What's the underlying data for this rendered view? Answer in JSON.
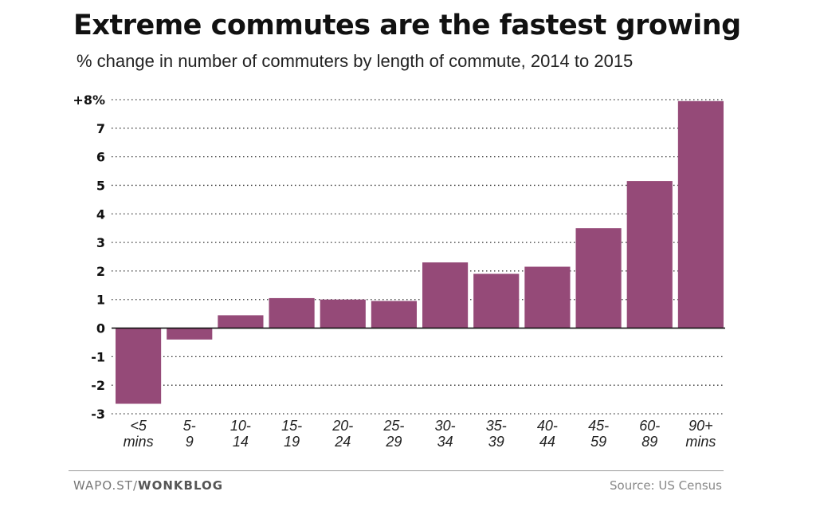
{
  "chart_data": {
    "type": "bar",
    "title": "Extreme commutes are the fastest growing",
    "subtitle": "% change in number of commuters by length of commute, 2014 to 2015",
    "categories": [
      [
        "<5",
        "mins"
      ],
      [
        "5-",
        "9"
      ],
      [
        "10-",
        "14"
      ],
      [
        "15-",
        "19"
      ],
      [
        "20-",
        "24"
      ],
      [
        "25-",
        "29"
      ],
      [
        "30-",
        "34"
      ],
      [
        "35-",
        "39"
      ],
      [
        "40-",
        "44"
      ],
      [
        "45-",
        "59"
      ],
      [
        "60-",
        "89"
      ],
      [
        "90+",
        "mins"
      ]
    ],
    "values": [
      -2.65,
      -0.4,
      0.45,
      1.05,
      1.0,
      0.95,
      2.3,
      1.9,
      2.15,
      3.5,
      5.15,
      7.95
    ],
    "ylim": [
      -3,
      8
    ],
    "yticks": [
      8,
      7,
      6,
      5,
      4,
      3,
      2,
      1,
      0,
      -1,
      -2,
      -3
    ],
    "ytick_labels": [
      "+8%",
      "7",
      "6",
      "5",
      "4",
      "3",
      "2",
      "1",
      "0",
      "-1",
      "-2",
      "-3"
    ],
    "grid": "dotted",
    "bar_color": "#954a78"
  },
  "footer": {
    "credit_prefix": "WAPO.ST/",
    "credit_bold": "WONKBLOG",
    "source": "Source: US Census"
  }
}
